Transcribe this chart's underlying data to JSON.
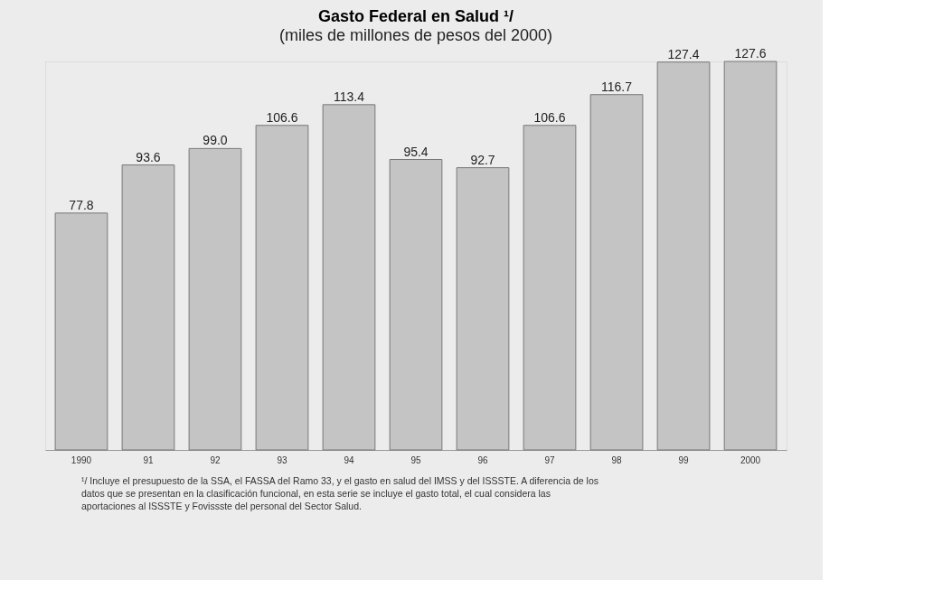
{
  "chart_data": {
    "type": "bar",
    "title": "Gasto Federal en Salud ¹/",
    "subtitle": "(miles de millones de pesos del 2000)",
    "categories": [
      "1990",
      "91",
      "92",
      "93",
      "94",
      "95",
      "96",
      "97",
      "98",
      "99",
      "2000"
    ],
    "values": [
      77.8,
      93.6,
      99.0,
      106.6,
      113.4,
      95.4,
      92.7,
      106.6,
      116.7,
      127.4,
      127.6
    ],
    "value_labels": [
      "77.8",
      "93.6",
      "99.0",
      "106.6",
      "113.4",
      "95.4",
      "92.7",
      "106.6",
      "116.7",
      "127.4",
      "127.6"
    ],
    "color": "#c4c4c4",
    "grid": false,
    "annotations": [
      "¹/ Incluye el presupuesto de la SSA, el FASSA del Ramo 33, y el gasto en salud del IMSS y del ISSSTE. A diferencia de los datos que se presentan en la clasificación funcional, en esta serie se incluye el gasto total, el cual considera las aportaciones al ISSSTE y Fovissste del personal del Sector Salud."
    ]
  }
}
